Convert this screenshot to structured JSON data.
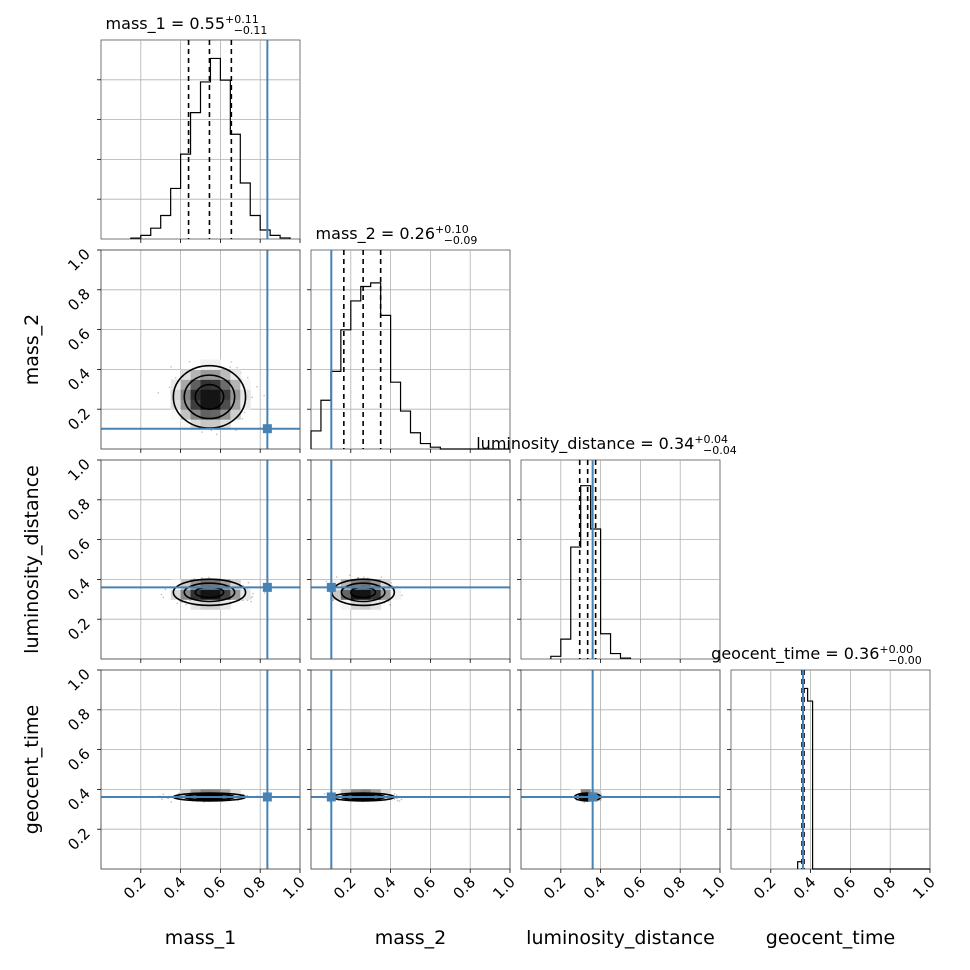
{
  "chart_data": {
    "type": "corner",
    "grid": true,
    "parameters": [
      "mass_1",
      "mass_2",
      "luminosity_distance",
      "geocent_time"
    ],
    "axis_labels": [
      "mass_1",
      "mass_2",
      "luminosity_distance",
      "geocent_time"
    ],
    "range": [
      0,
      1
    ],
    "tick_labels": [
      "0.2",
      "0.4",
      "0.6",
      "0.8",
      "1.0"
    ],
    "truths": [
      0.836,
      0.102,
      0.36,
      0.362
    ],
    "truth_color": "#4682b4",
    "titles": [
      {
        "name": "mass_1",
        "median": "0.55",
        "plus": "+0.11",
        "minus": "−0.11"
      },
      {
        "name": "mass_2",
        "median": "0.26",
        "plus": "+0.10",
        "minus": "−0.09"
      },
      {
        "name": "luminosity_distance",
        "median": "0.34",
        "plus": "+0.04",
        "minus": "−0.04"
      },
      {
        "name": "geocent_time",
        "median": "0.36",
        "plus": "+0.00",
        "minus": "−0.00"
      }
    ],
    "quantiles": [
      [
        0.44,
        0.545,
        0.655
      ],
      [
        0.165,
        0.262,
        0.35
      ],
      [
        0.295,
        0.335,
        0.375
      ],
      [
        0.357,
        0.362,
        0.367
      ]
    ],
    "marginals": [
      {
        "bin_edges": [
          0.15,
          0.2,
          0.25,
          0.3,
          0.35,
          0.4,
          0.45,
          0.5,
          0.55,
          0.6,
          0.65,
          0.7,
          0.75,
          0.8,
          0.85,
          0.9,
          0.95
        ],
        "density": [
          0.005,
          0.02,
          0.06,
          0.13,
          0.28,
          0.47,
          0.7,
          0.87,
          1.0,
          0.88,
          0.58,
          0.31,
          0.13,
          0.05,
          0.02,
          0.006
        ]
      },
      {
        "bin_edges": [
          0,
          0.05,
          0.1,
          0.15,
          0.2,
          0.25,
          0.3,
          0.35,
          0.4,
          0.45,
          0.5,
          0.55,
          0.6,
          0.65,
          0.7,
          0.75,
          0.8,
          0.85,
          0.9,
          0.95,
          1.0
        ],
        "density": [
          0.1,
          0.27,
          0.43,
          0.66,
          0.82,
          0.9,
          0.92,
          0.74,
          0.37,
          0.21,
          0.09,
          0.03,
          0.01,
          0,
          0,
          0,
          0,
          0,
          0,
          0
        ]
      },
      {
        "bin_edges": [
          0.15,
          0.2,
          0.25,
          0.3,
          0.35,
          0.4,
          0.45,
          0.5,
          0.55
        ],
        "density": [
          0.015,
          0.11,
          0.62,
          0.96,
          0.72,
          0.14,
          0.03,
          0.005
        ]
      },
      {
        "bin_edges": [
          0.335,
          0.36,
          0.385,
          0.41,
          1.0
        ],
        "density": [
          0.04,
          1.0,
          0.93,
          0.0
        ]
      }
    ]
  }
}
